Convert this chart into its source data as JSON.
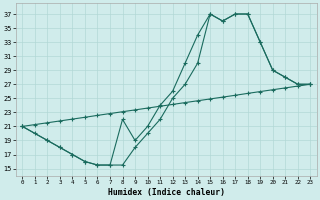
{
  "xlabel": "Humidex (Indice chaleur)",
  "bg_color": "#d0eceb",
  "grid_color": "#b2d8d6",
  "line_color": "#1a6b5e",
  "xlim": [
    -0.5,
    23.5
  ],
  "ylim": [
    14.0,
    38.5
  ],
  "xticks": [
    0,
    1,
    2,
    3,
    4,
    5,
    6,
    7,
    8,
    9,
    10,
    11,
    12,
    13,
    14,
    15,
    16,
    17,
    18,
    19,
    20,
    21,
    22,
    23
  ],
  "yticks": [
    15,
    17,
    19,
    21,
    23,
    25,
    27,
    29,
    31,
    33,
    35,
    37
  ],
  "line1_x": [
    0,
    1,
    2,
    3,
    4,
    5,
    6,
    7,
    8,
    9,
    10,
    11,
    12,
    13,
    14,
    15,
    16,
    17,
    18,
    19,
    20,
    21,
    22,
    23
  ],
  "line1_y": [
    21,
    20,
    19,
    18,
    17,
    16,
    15.5,
    15.5,
    15.5,
    18,
    20,
    22,
    25,
    27,
    30,
    37,
    36,
    37,
    37,
    33,
    29,
    28,
    27,
    27
  ],
  "line2_x": [
    0,
    2,
    3,
    4,
    5,
    6,
    7,
    8,
    9,
    10,
    11,
    12,
    13,
    14,
    15,
    16,
    17,
    18,
    19,
    20,
    21,
    22,
    23
  ],
  "line2_y": [
    21,
    19,
    18,
    17,
    16,
    15.5,
    15.5,
    22,
    19,
    21,
    24,
    26,
    30,
    34,
    37,
    36,
    37,
    37,
    33,
    29,
    28,
    27,
    27
  ],
  "line3_x": [
    0,
    1,
    2,
    3,
    4,
    5,
    6,
    7,
    8,
    9,
    10,
    11,
    12,
    13,
    14,
    15,
    16,
    17,
    18,
    19,
    20,
    21,
    22,
    23
  ],
  "line3_y": [
    21,
    21.26,
    21.52,
    21.78,
    22.04,
    22.3,
    22.57,
    22.83,
    23.09,
    23.35,
    23.61,
    23.87,
    24.13,
    24.39,
    24.65,
    24.91,
    25.17,
    25.43,
    25.7,
    25.96,
    26.22,
    26.48,
    26.74,
    27.0
  ]
}
